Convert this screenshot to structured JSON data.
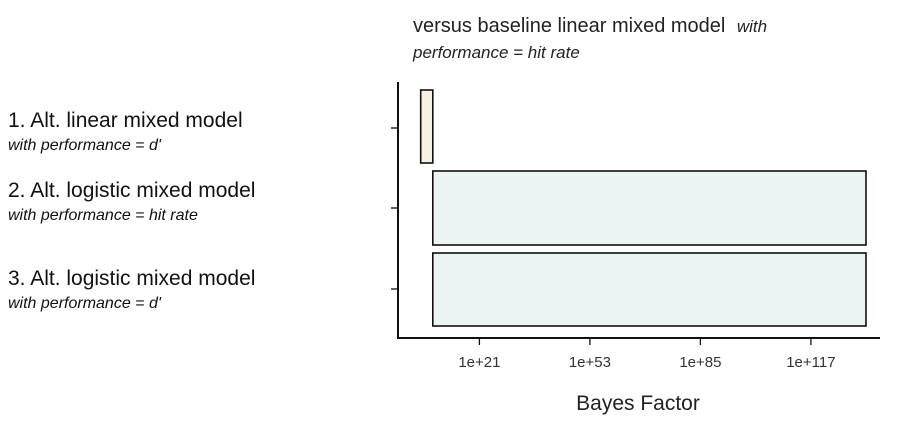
{
  "chart_data": {
    "type": "bar",
    "orientation": "horizontal",
    "title": {
      "main": "versus baseline linear mixed model",
      "em_inline": "with",
      "em_second_line": "performance = hit rate"
    },
    "xlabel": "Bayes Factor",
    "x_scale": "log10",
    "xlim_log10": [
      -2,
      137
    ],
    "x_ticks": [
      {
        "log10": 21,
        "label": "1e+21"
      },
      {
        "log10": 53,
        "label": "1e+53"
      },
      {
        "log10": 85,
        "label": "1e+85"
      },
      {
        "log10": 117,
        "label": "1e+117"
      }
    ],
    "grid": false,
    "legend": "none",
    "categories": [
      {
        "main": "1. Alt. linear mixed model",
        "sub": "with performance = d'"
      },
      {
        "main": "2. Alt. logistic mixed model",
        "sub": "with performance = hit rate"
      },
      {
        "main": "3. Alt. logistic mixed model",
        "sub": "with performance = d'"
      }
    ],
    "values_log10": [
      {
        "start": 4,
        "end": 7.5
      },
      {
        "start": 7.5,
        "end": 147
      },
      {
        "start": 7.5,
        "end": 147
      }
    ],
    "colors": {
      "bar_row1": "#f7f1e1",
      "bar_rows_2_3": "#ebf3f3",
      "bar_outline": "#111111",
      "axis": "#111111"
    }
  }
}
